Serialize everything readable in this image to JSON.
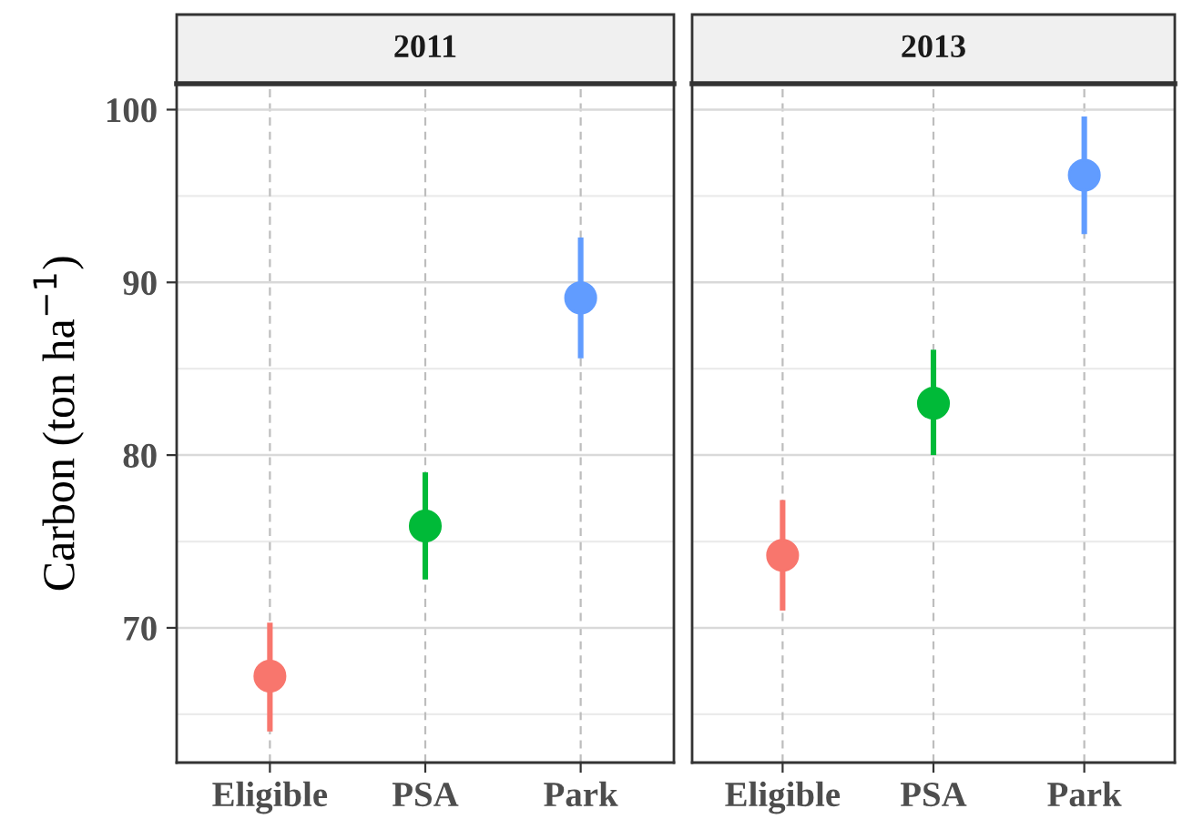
{
  "chart_data": [
    {
      "type": "scatter",
      "title": "2011",
      "ylabel": "Carbon (ton ha$^{−1}$)",
      "categories": [
        "Eligible",
        "PSA",
        "Park"
      ],
      "ylim": [
        62.2,
        101.5
      ],
      "yticks": [
        70,
        80,
        90,
        100
      ],
      "grid": true,
      "marker": "circle",
      "series": [
        {
          "colors": [
            "#f8766d",
            "#00ba38",
            "#619cff"
          ],
          "values": [
            67.2,
            75.9,
            89.1
          ],
          "errors": [
            [
              64.0,
              70.3
            ],
            [
              72.8,
              79.0
            ],
            [
              85.6,
              92.6
            ]
          ]
        }
      ]
    },
    {
      "type": "scatter",
      "title": "2013",
      "categories": [
        "Eligible",
        "PSA",
        "Park"
      ],
      "ylim": [
        62.2,
        101.5
      ],
      "yticks": [
        70,
        80,
        90,
        100
      ],
      "tick_labels": "x",
      "grid": true,
      "marker": "circle",
      "series": [
        {
          "colors": [
            "#f8766d",
            "#00ba38",
            "#619cff"
          ],
          "values": [
            74.2,
            83.0,
            96.2
          ],
          "errors": [
            [
              71.0,
              77.4
            ],
            [
              80.0,
              86.1
            ],
            [
              92.8,
              99.6
            ]
          ]
        }
      ]
    }
  ]
}
